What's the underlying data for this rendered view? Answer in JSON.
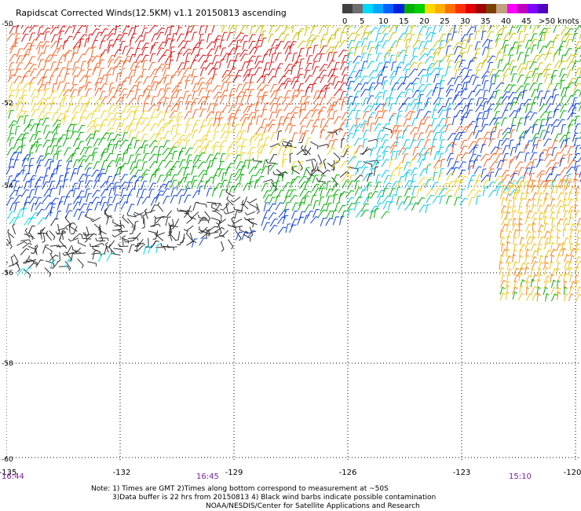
{
  "title": "Rapidscat Corrected Winds(12.5KM) v1.1 20150813 ascending",
  "speed_scale": {
    "labels": [
      "0",
      "5",
      "10",
      "15",
      "20",
      "25",
      "30",
      "35",
      "40",
      "45",
      ">50 knots"
    ],
    "colors": [
      "#404040",
      "#6e6e6e",
      "#00d8ff",
      "#00a8ff",
      "#0060ff",
      "#0020e0",
      "#00b000",
      "#00d000",
      "#ffd800",
      "#ffb000",
      "#ff7000",
      "#ff3000",
      "#e00000",
      "#a00000",
      "#7a4000",
      "#c0a080",
      "#ff00ff",
      "#c000c0",
      "#8000ff",
      "#5000c0"
    ]
  },
  "lat_labels": [
    "-50",
    "-52",
    "-54",
    "-56",
    "-58",
    "-60"
  ],
  "lon_labels": [
    "-135",
    "-132",
    "-129",
    "-126",
    "-123",
    "-120"
  ],
  "time_labels": [
    "16:44",
    "16:45",
    "15:10"
  ],
  "notes": [
    "Note: 1) Times are GMT 2)Times along bottom correspond to measurement at ~50S",
    "3)Data buffer is 22 hrs from 20150813 4) Black wind barbs indicate possible contamination",
    "NOAA/NESDIS/Center for Satellite Applications and Research"
  ]
}
